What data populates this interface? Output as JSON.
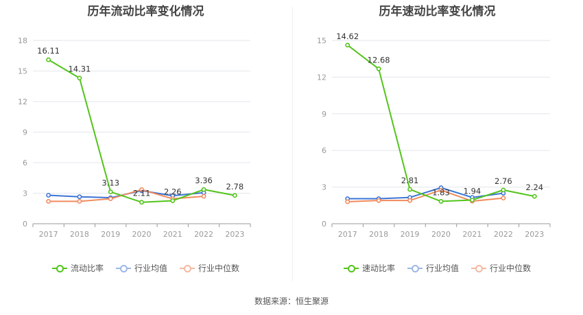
{
  "source": "数据来源：恒生聚源",
  "colors": {
    "company": "#52c41a",
    "industry_avg": "#3b74d6",
    "industry_median": "#f08a5d",
    "grid": "#e3e6ec",
    "axis": "#cccccc"
  },
  "chart_data": [
    {
      "type": "line",
      "title": "历年流动比率变化情况",
      "categories": [
        "2017",
        "2018",
        "2019",
        "2020",
        "2021",
        "2022",
        "2023"
      ],
      "ylim": [
        0,
        18
      ],
      "yticks": [
        0,
        3,
        6,
        9,
        12,
        15,
        18
      ],
      "grid": true,
      "legend_position": "bottom",
      "series": [
        {
          "name": "流动比率",
          "key": "company",
          "values": [
            16.11,
            14.31,
            3.13,
            2.11,
            2.26,
            3.36,
            2.78
          ],
          "labels": [
            "16.11",
            "14.31",
            "3.13",
            "2.11",
            "2.26",
            "3.36",
            "2.78"
          ]
        },
        {
          "name": "行业均值",
          "key": "industry_avg",
          "values": [
            2.8,
            2.65,
            2.55,
            3.25,
            2.75,
            3.05,
            null
          ]
        },
        {
          "name": "行业中位数",
          "key": "industry_median",
          "values": [
            2.2,
            2.2,
            2.45,
            3.35,
            2.45,
            2.7,
            null
          ]
        }
      ]
    },
    {
      "type": "line",
      "title": "历年速动比率变化情况",
      "categories": [
        "2017",
        "2018",
        "2019",
        "2020",
        "2021",
        "2022",
        "2023"
      ],
      "ylim": [
        0,
        15
      ],
      "yticks": [
        0,
        3,
        6,
        9,
        12,
        15
      ],
      "grid": true,
      "legend_position": "bottom",
      "series": [
        {
          "name": "速动比率",
          "key": "company",
          "values": [
            14.62,
            12.68,
            2.81,
            1.83,
            1.94,
            2.76,
            2.24
          ],
          "labels": [
            "14.62",
            "12.68",
            "2.81",
            "1.83",
            "1.94",
            "2.76",
            "2.24"
          ]
        },
        {
          "name": "行业均值",
          "key": "industry_avg",
          "values": [
            2.05,
            2.05,
            2.15,
            2.95,
            2.15,
            2.5,
            null
          ]
        },
        {
          "name": "行业中位数",
          "key": "industry_median",
          "values": [
            1.8,
            1.9,
            1.9,
            2.75,
            1.85,
            2.1,
            null
          ]
        }
      ]
    }
  ]
}
